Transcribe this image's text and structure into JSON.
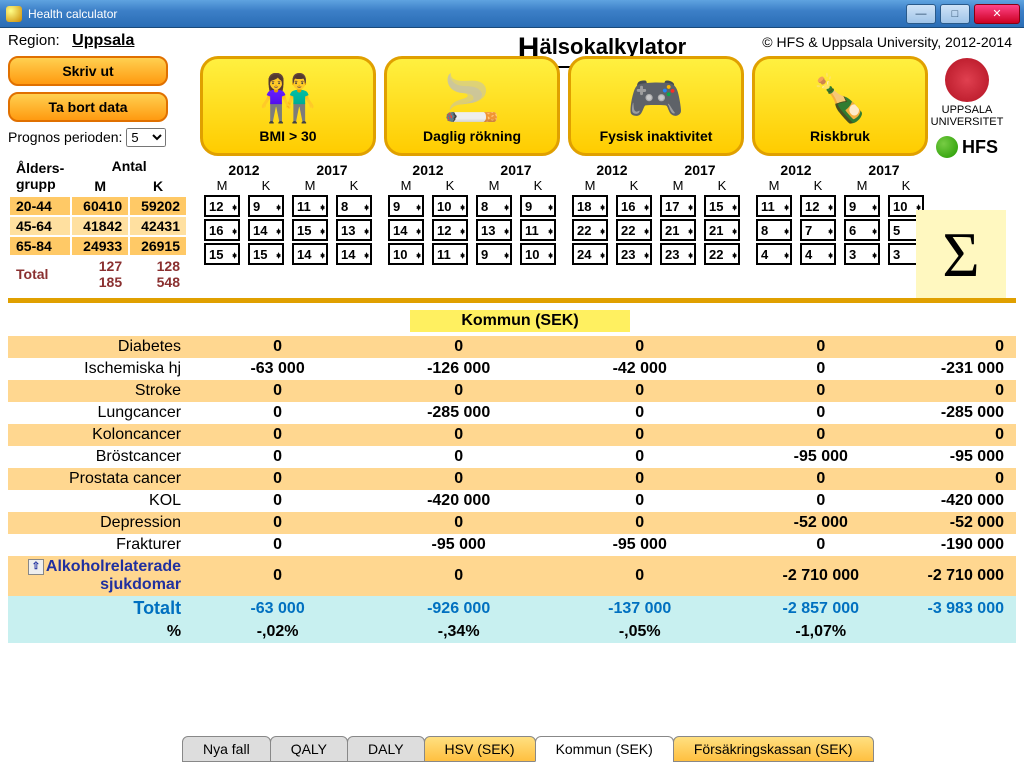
{
  "window_title": "Health calculator",
  "region_label": "Region:",
  "region_value": "Uppsala",
  "buttons": {
    "print": "Skriv ut",
    "clear": "Ta bort data"
  },
  "prognos_label": "Prognos perioden:",
  "prognos_value": "5",
  "brand": "älsokalkylator",
  "copyright": "© HFS & Uppsala University, 2012-2014",
  "uu_label": "UPPSALA UNIVERSITET",
  "hfs_label": "HFS",
  "factors": [
    {
      "name": "bmi",
      "label": "BMI > 30",
      "icon": "👫"
    },
    {
      "name": "smoke",
      "label": "Daglig rökning",
      "icon": "🚬"
    },
    {
      "name": "phys",
      "label": "Fysisk inaktivitet",
      "icon": "🎮"
    },
    {
      "name": "risk",
      "label": "Riskbruk",
      "icon": "🍾"
    }
  ],
  "age_headers": {
    "group": "Ålders-\ngrupp",
    "count": "Antal",
    "m": "M",
    "k": "K"
  },
  "age_rows": [
    {
      "g": "20-44",
      "m": "60410",
      "k": "59202"
    },
    {
      "g": "45-64",
      "m": "41842",
      "k": "42431"
    },
    {
      "g": "65-84",
      "m": "24933",
      "k": "26915"
    }
  ],
  "age_total": {
    "label": "Total",
    "m": "127 185",
    "k": "128 548"
  },
  "years": {
    "a": "2012",
    "b": "2017"
  },
  "mk": {
    "m": "M",
    "k": "K"
  },
  "spinners": [
    [
      [
        12,
        9,
        11,
        8
      ],
      [
        16,
        14,
        15,
        13
      ],
      [
        15,
        15,
        14,
        14
      ]
    ],
    [
      [
        9,
        10,
        8,
        9
      ],
      [
        14,
        12,
        13,
        11
      ],
      [
        10,
        11,
        9,
        10
      ]
    ],
    [
      [
        18,
        16,
        17,
        15
      ],
      [
        22,
        22,
        21,
        21
      ],
      [
        24,
        23,
        23,
        22
      ]
    ],
    [
      [
        11,
        12,
        9,
        10
      ],
      [
        8,
        7,
        6,
        5
      ],
      [
        4,
        4,
        3,
        3
      ]
    ]
  ],
  "sigma": "Σ",
  "kommun_label": "Kommun (SEK)",
  "diseases": [
    {
      "n": "Diabetes",
      "v": [
        "0",
        "0",
        "0",
        "0"
      ],
      "s": "0"
    },
    {
      "n": "Ischemiska hj",
      "v": [
        "-63 000",
        "-126 000",
        "-42 000",
        "0"
      ],
      "s": "-231 000"
    },
    {
      "n": "Stroke",
      "v": [
        "0",
        "0",
        "0",
        "0"
      ],
      "s": "0"
    },
    {
      "n": "Lungcancer",
      "v": [
        "0",
        "-285 000",
        "0",
        "0"
      ],
      "s": "-285 000"
    },
    {
      "n": "Koloncancer",
      "v": [
        "0",
        "0",
        "0",
        "0"
      ],
      "s": "0"
    },
    {
      "n": "Bröstcancer",
      "v": [
        "0",
        "0",
        "0",
        "-95 000"
      ],
      "s": "-95 000"
    },
    {
      "n": "Prostata cancer",
      "v": [
        "0",
        "0",
        "0",
        "0"
      ],
      "s": "0"
    },
    {
      "n": "KOL",
      "v": [
        "0",
        "-420 000",
        "0",
        "0"
      ],
      "s": "-420 000"
    },
    {
      "n": "Depression",
      "v": [
        "0",
        "0",
        "0",
        "-52 000"
      ],
      "s": "-52 000"
    },
    {
      "n": "Frakturer",
      "v": [
        "0",
        "-95 000",
        "-95 000",
        "0"
      ],
      "s": "-190 000"
    }
  ],
  "alko": {
    "n": "Alkoholrelaterade sjukdomar",
    "v": [
      "0",
      "0",
      "0",
      "-2 710 000"
    ],
    "s": "-2 710 000"
  },
  "totalt": {
    "label": "Totalt",
    "v": [
      "-63 000",
      "-926 000",
      "-137 000",
      "-2 857 000"
    ],
    "s": "-3 983 000"
  },
  "pct": {
    "label": "%",
    "v": [
      "-,02%",
      "-,34%",
      "-,05%",
      "-1,07%"
    ]
  },
  "tabs": [
    "Nya fall",
    "QALY",
    "DALY",
    "HSV (SEK)",
    "Kommun (SEK)",
    "Försäkringskassan (SEK)"
  ],
  "active_tab": 4
}
